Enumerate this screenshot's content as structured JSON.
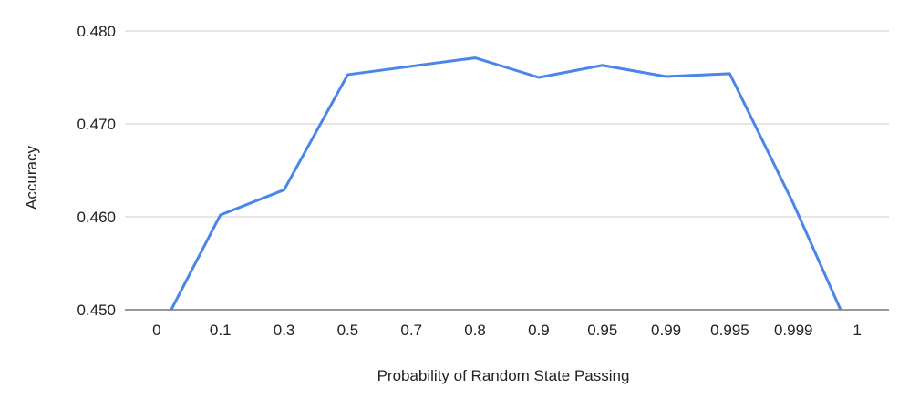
{
  "chart_data": {
    "type": "line",
    "categories": [
      "0",
      "0.1",
      "0.3",
      "0.5",
      "0.7",
      "0.8",
      "0.9",
      "0.95",
      "0.99",
      "0.995",
      "0.999",
      "1"
    ],
    "series": [
      {
        "values": [
          0.447,
          0.4602,
          0.4629,
          0.4753,
          null,
          0.4771,
          0.475,
          0.4763,
          0.4751,
          0.4754,
          0.4614,
          0.446
        ],
        "color": "#4a86e8"
      }
    ],
    "y_ticks": [
      "0.450",
      "0.460",
      "0.470",
      "0.480"
    ],
    "ylim": [
      0.45,
      0.48
    ],
    "xlabel": "Probability of Random State Passing",
    "ylabel": "Accuracy",
    "grid": true,
    "legend": "none"
  }
}
